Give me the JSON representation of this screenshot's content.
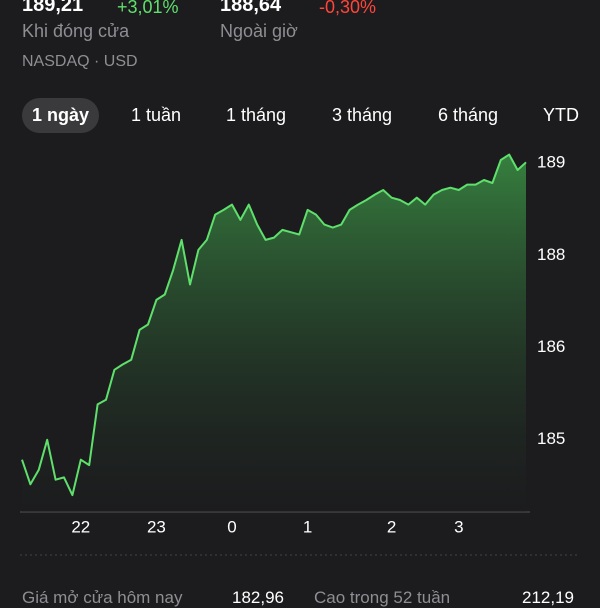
{
  "header": {
    "close_price": "189,21",
    "close_change": "+3,01%",
    "close_label": "Khi đóng cửa",
    "after_price": "188,64",
    "after_change": "-0,30%",
    "after_label": "Ngoài giờ",
    "exchange": "NASDAQ · USD"
  },
  "tabs": [
    "1 ngày",
    "1 tuần",
    "1 tháng",
    "3 tháng",
    "6 tháng",
    "YTD"
  ],
  "chart_data": {
    "type": "line",
    "color": "#5fe06c",
    "categories": [
      null,
      null,
      null,
      null,
      null,
      null,
      null,
      "22",
      null,
      null,
      null,
      null,
      null,
      null,
      null,
      null,
      "23",
      null,
      null,
      null,
      null,
      null,
      null,
      null,
      null,
      "0",
      null,
      null,
      null,
      null,
      null,
      null,
      null,
      null,
      "1",
      null,
      null,
      null,
      null,
      null,
      null,
      null,
      null,
      null,
      "2",
      null,
      null,
      null,
      null,
      null,
      null,
      null,
      "3",
      null,
      null,
      null,
      null,
      null,
      null,
      null,
      null
    ],
    "values": [
      184.94,
      184.62,
      184.81,
      185.2,
      184.68,
      184.71,
      184.48,
      184.94,
      184.87,
      185.66,
      185.72,
      186.11,
      186.18,
      186.24,
      186.63,
      186.7,
      187.02,
      187.09,
      187.41,
      187.8,
      187.22,
      187.67,
      187.8,
      188.13,
      188.19,
      188.26,
      188.06,
      188.26,
      188.0,
      187.8,
      187.83,
      187.93,
      187.9,
      187.87,
      188.19,
      188.13,
      188.0,
      187.96,
      188.0,
      188.19,
      188.26,
      188.32,
      188.39,
      188.45,
      188.35,
      188.32,
      188.26,
      188.35,
      188.26,
      188.39,
      188.45,
      188.48,
      188.45,
      188.52,
      188.52,
      188.58,
      188.54,
      188.84,
      188.91,
      188.71,
      188.81
    ],
    "ylim": [
      184.26,
      188.97
    ],
    "yticks": [
      {
        "value": 188.8,
        "label": "189"
      },
      {
        "value": 187.6,
        "label": "188"
      },
      {
        "value": 186.4,
        "label": "186"
      },
      {
        "value": 185.2,
        "label": "185"
      }
    ]
  },
  "stats": {
    "open_label": "Giá mở cửa hôm nay",
    "open_value": "182,96",
    "high52_label": "Cao trong 52 tuần",
    "high52_value": "212,19"
  }
}
